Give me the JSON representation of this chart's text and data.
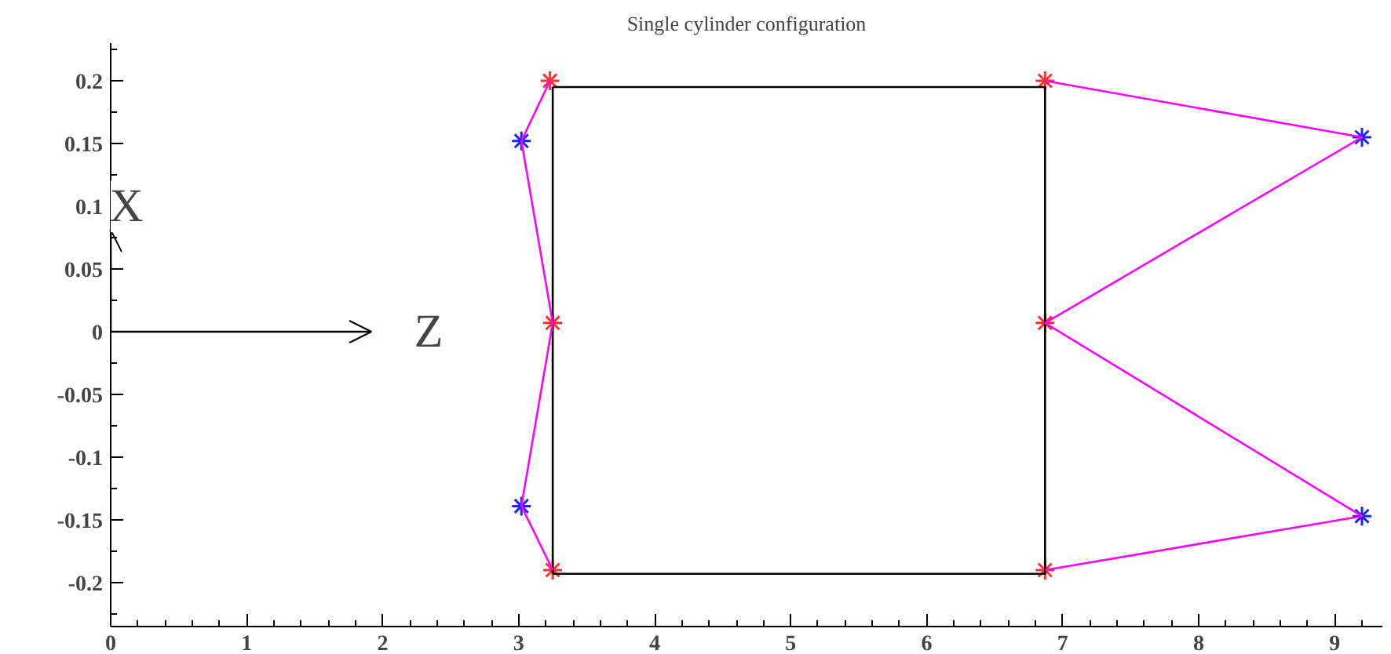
{
  "chart_data": {
    "type": "line",
    "title": "Single cylinder configuration",
    "xlim": [
      0,
      9.35
    ],
    "ylim": [
      -0.235,
      0.23
    ],
    "xticks": [
      0,
      1,
      2,
      3,
      4,
      5,
      6,
      7,
      8,
      9
    ],
    "yticks": [
      -0.2,
      -0.15,
      -0.1,
      -0.05,
      0,
      0.05,
      0.1,
      0.15,
      0.2
    ],
    "grid": false,
    "annotations": [
      "X",
      "Z"
    ],
    "series": [
      {
        "color": "#000000",
        "marker": "none",
        "x": [
          3.25,
          6.87,
          6.87,
          3.25
        ],
        "values": [
          0.195,
          0.195,
          -0.193,
          -0.193
        ]
      },
      {
        "color": "#000000",
        "marker": "none",
        "x": [
          3.25,
          3.25
        ],
        "values": [
          -0.193,
          0.195
        ]
      },
      {
        "color": "#ff00ff",
        "marker": "none",
        "x": [
          3.23,
          3.02,
          3.25,
          3.02,
          3.25
        ],
        "values": [
          0.2,
          0.152,
          0.007,
          -0.139,
          -0.19
        ]
      },
      {
        "color": "#ff00ff",
        "marker": "none",
        "x": [
          6.87,
          9.2,
          6.87,
          9.2,
          6.87
        ],
        "values": [
          0.2,
          0.155,
          0.007,
          -0.147,
          -0.19
        ]
      },
      {
        "type": "scatter",
        "color": "#ff3030",
        "marker": "cross",
        "x": [
          3.23,
          3.25,
          3.25,
          6.87,
          6.87,
          6.87
        ],
        "values": [
          0.2,
          0.007,
          -0.19,
          0.2,
          0.007,
          -0.19
        ]
      },
      {
        "type": "scatter",
        "color": "#2020ff",
        "marker": "cross",
        "x": [
          3.02,
          3.02,
          9.2,
          9.2
        ],
        "values": [
          0.152,
          -0.139,
          0.155,
          -0.147
        ]
      }
    ]
  }
}
